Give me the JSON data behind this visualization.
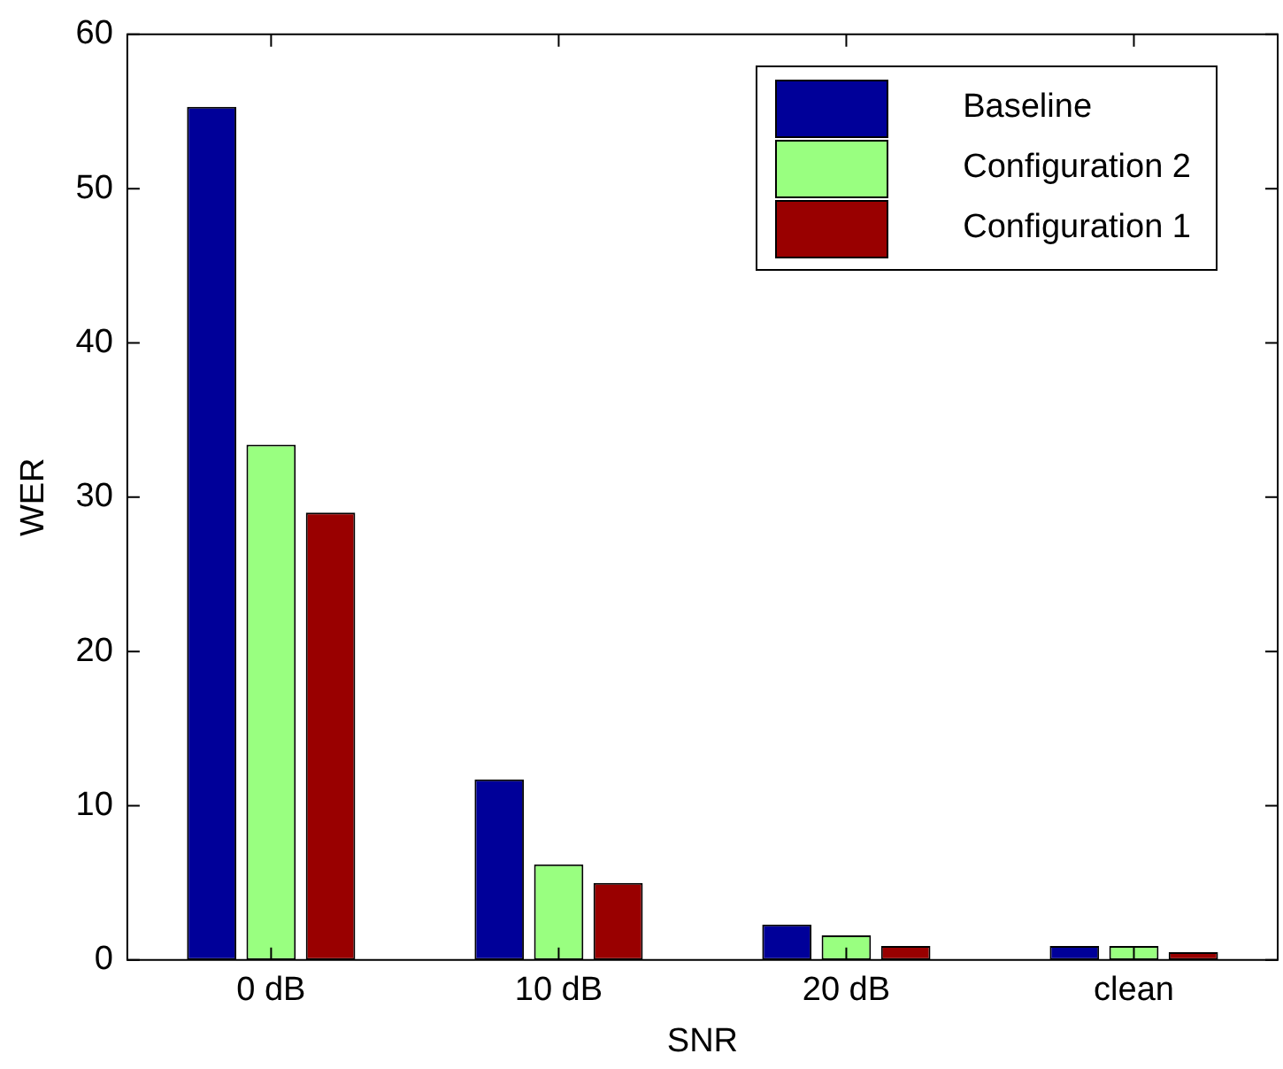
{
  "chart_data": {
    "type": "bar",
    "xlabel": "SNR",
    "ylabel": "WER",
    "categories": [
      "0 dB",
      "10 dB",
      "20 dB",
      "clean"
    ],
    "series": [
      {
        "name": "Baseline",
        "color": "#000099",
        "values": [
          55.3,
          11.7,
          2.3,
          0.9
        ]
      },
      {
        "name": "Configuration 2",
        "color": "#99ff80",
        "values": [
          33.4,
          6.2,
          1.6,
          0.9
        ]
      },
      {
        "name": "Configuration 1",
        "color": "#990000",
        "values": [
          29.0,
          5.0,
          0.9,
          0.5
        ]
      }
    ],
    "ylim": [
      0,
      60
    ],
    "yticks": [
      0,
      10,
      20,
      30,
      40,
      50,
      60
    ],
    "grid": false,
    "legend": "top right"
  }
}
